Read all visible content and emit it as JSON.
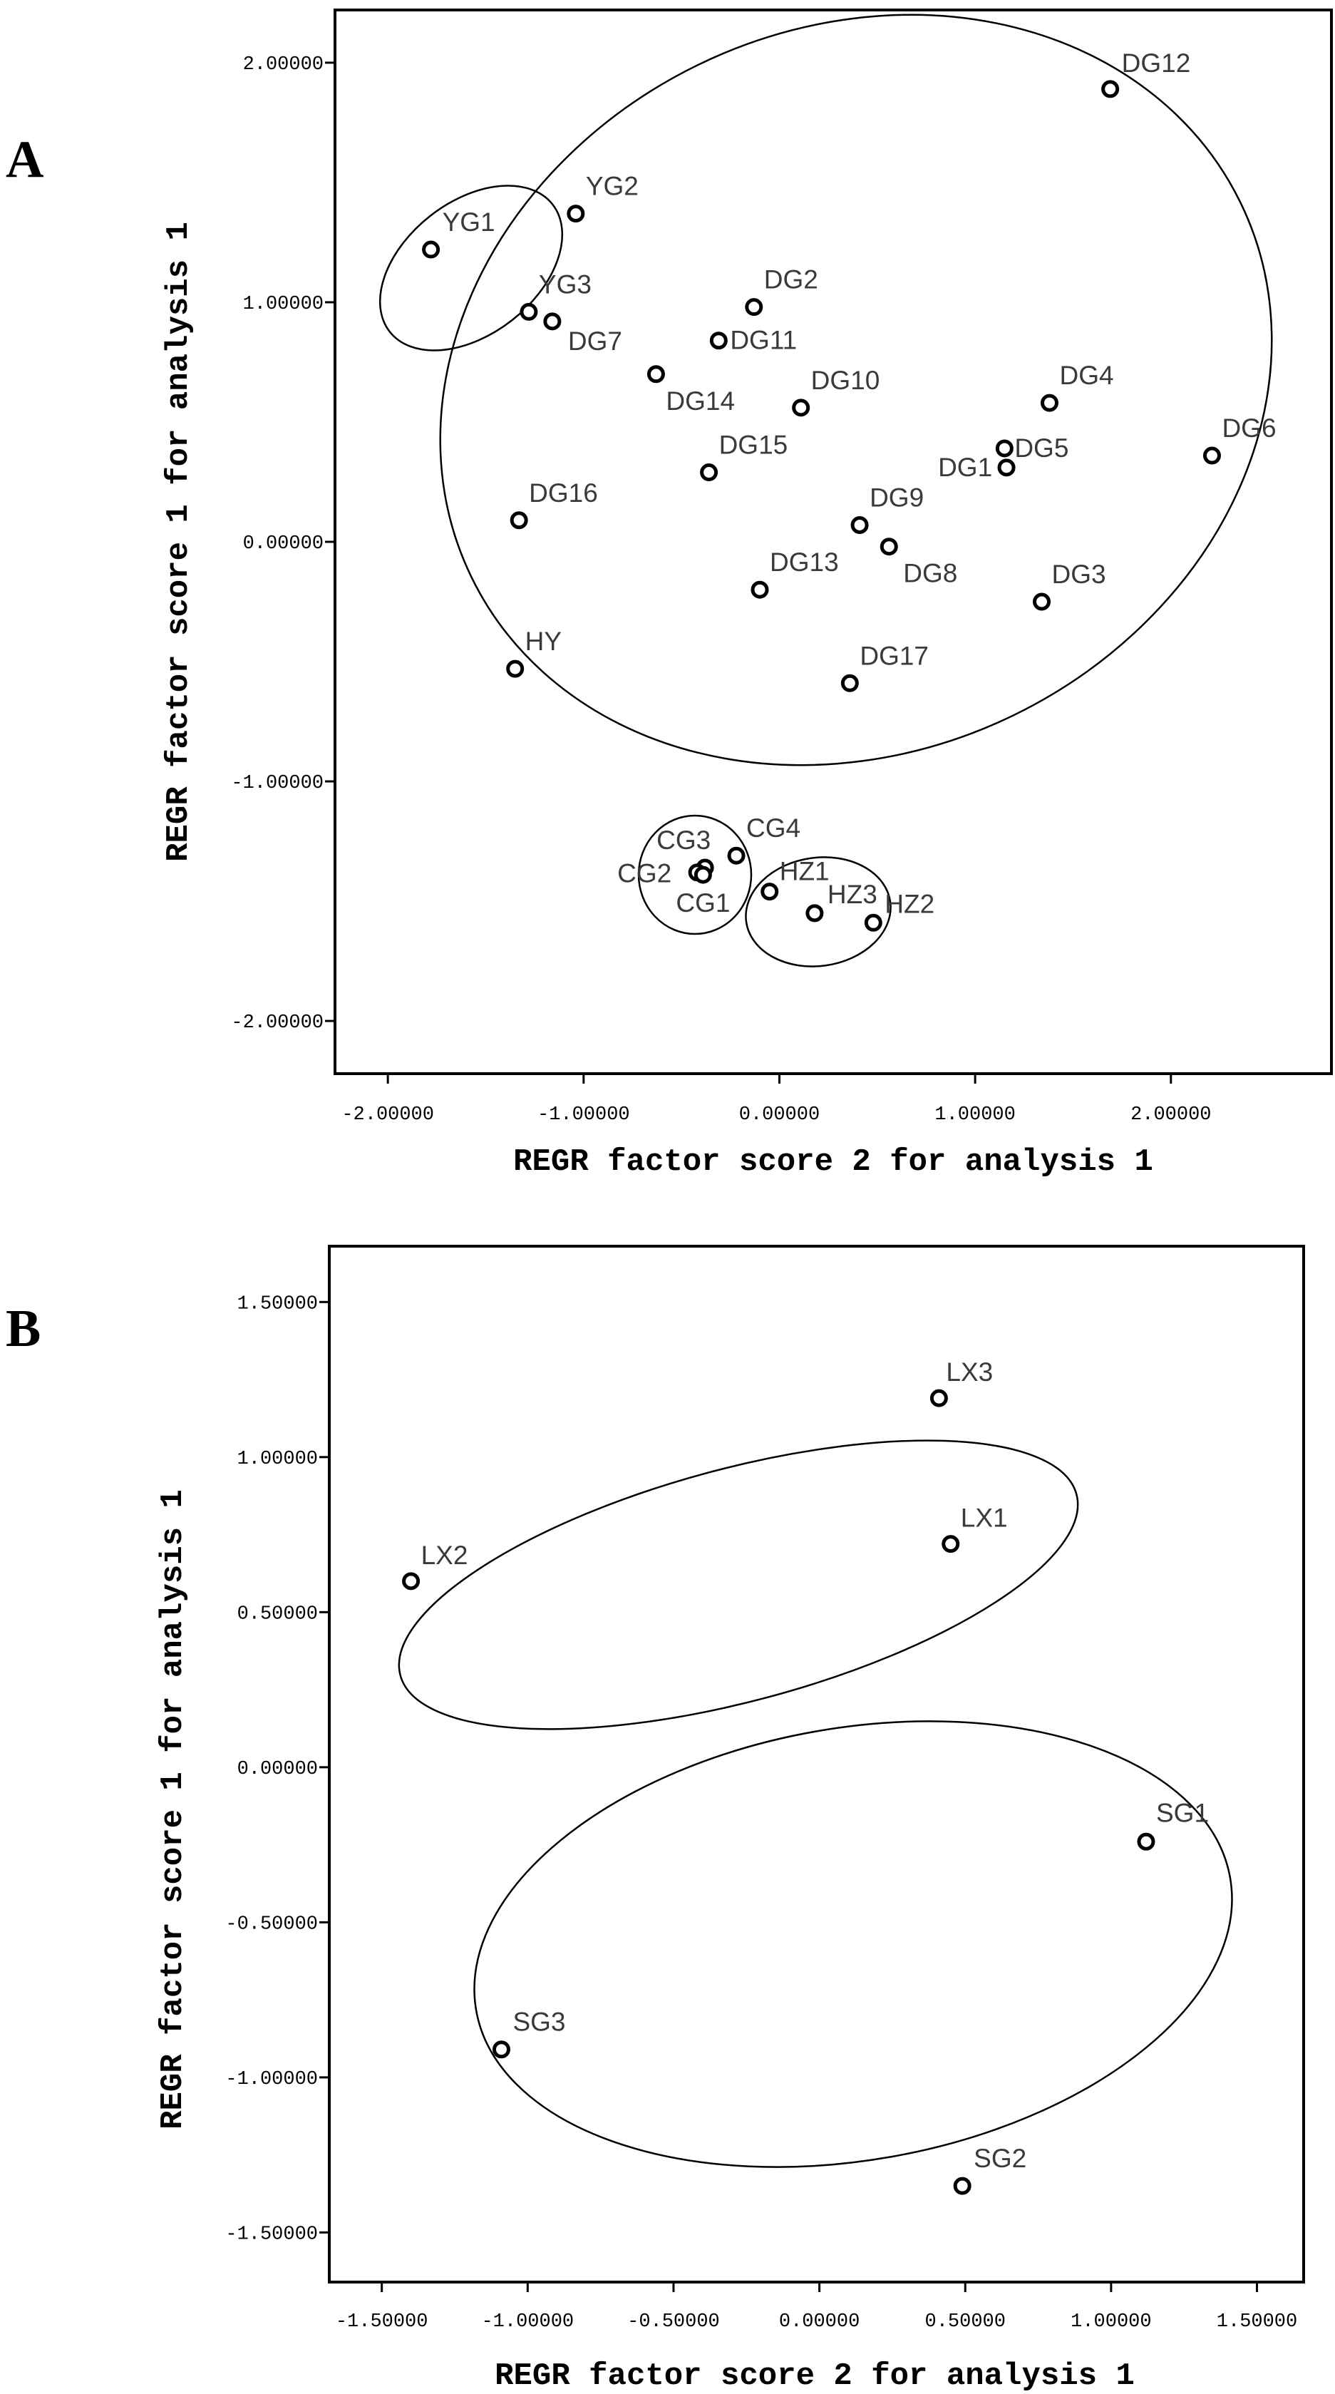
{
  "chart_data": [
    {
      "panel": "A",
      "type": "scatter",
      "xlabel": "REGR factor score   2 for analysis 1",
      "ylabel": "REGR factor score   1 for analysis 1",
      "xlim": [
        -2.27,
        2.82
      ],
      "ylim": [
        -2.22,
        2.22
      ],
      "xticks": [
        "-2.00000",
        "-1.00000",
        "0.00000",
        "1.00000",
        "2.00000"
      ],
      "yticks": [
        "-2.00000",
        "-1.00000",
        "0.00000",
        "1.00000",
        "2.00000"
      ],
      "grid": false,
      "points": [
        {
          "label": "DG12",
          "x": 1.69,
          "y": 1.89
        },
        {
          "label": "YG1",
          "x": -1.78,
          "y": 1.22
        },
        {
          "label": "YG2",
          "x": -1.04,
          "y": 1.37
        },
        {
          "label": "YG3",
          "x": -1.28,
          "y": 0.96
        },
        {
          "label": "DG7",
          "x": -1.16,
          "y": 0.92
        },
        {
          "label": "DG2",
          "x": -0.13,
          "y": 0.98
        },
        {
          "label": "DG11",
          "x": -0.31,
          "y": 0.84
        },
        {
          "label": "DG14",
          "x": -0.63,
          "y": 0.7
        },
        {
          "label": "DG10",
          "x": 0.11,
          "y": 0.56
        },
        {
          "label": "DG4",
          "x": 1.38,
          "y": 0.58
        },
        {
          "label": "DG5",
          "x": 1.15,
          "y": 0.39
        },
        {
          "label": "DG1",
          "x": 1.16,
          "y": 0.31
        },
        {
          "label": "DG6",
          "x": 2.21,
          "y": 0.36
        },
        {
          "label": "DG15",
          "x": -0.36,
          "y": 0.29
        },
        {
          "label": "DG16",
          "x": -1.33,
          "y": 0.09
        },
        {
          "label": "DG9",
          "x": 0.41,
          "y": 0.07
        },
        {
          "label": "DG8",
          "x": 0.56,
          "y": -0.02
        },
        {
          "label": "DG13",
          "x": -0.1,
          "y": -0.2
        },
        {
          "label": "DG3",
          "x": 1.34,
          "y": -0.25
        },
        {
          "label": "HY",
          "x": -1.35,
          "y": -0.53
        },
        {
          "label": "DG17",
          "x": 0.36,
          "y": -0.59
        },
        {
          "label": "CG4",
          "x": -0.22,
          "y": -1.31
        },
        {
          "label": "CG3",
          "x": -0.38,
          "y": -1.36
        },
        {
          "label": "CG2",
          "x": -0.42,
          "y": -1.38
        },
        {
          "label": "CG1",
          "x": -0.39,
          "y": -1.39
        },
        {
          "label": "HZ1",
          "x": -0.05,
          "y": -1.46
        },
        {
          "label": "HZ3",
          "x": 0.18,
          "y": -1.55
        },
        {
          "label": "HZ2",
          "x": 0.48,
          "y": -1.59
        }
      ]
    },
    {
      "panel": "B",
      "type": "scatter",
      "xlabel": "REGR factor score   2 for analysis 1",
      "ylabel": "REGR factor score   1 for analysis 1",
      "xlim": [
        -1.68,
        1.66
      ],
      "ylim": [
        -1.66,
        1.68
      ],
      "xticks": [
        "-1.50000",
        "-1.00000",
        "-0.50000",
        "0.00000",
        "0.50000",
        "1.00000",
        "1.50000"
      ],
      "yticks": [
        "-1.50000",
        "-1.00000",
        "-0.50000",
        "0.00000",
        "0.50000",
        "1.00000",
        "1.50000"
      ],
      "grid": false,
      "points": [
        {
          "label": "LX3",
          "x": 0.41,
          "y": 1.19
        },
        {
          "label": "LX1",
          "x": 0.45,
          "y": 0.72
        },
        {
          "label": "LX2",
          "x": -1.4,
          "y": 0.6
        },
        {
          "label": "SG1",
          "x": 1.12,
          "y": -0.24
        },
        {
          "label": "SG3",
          "x": -1.09,
          "y": -0.91
        },
        {
          "label": "SG2",
          "x": 0.49,
          "y": -1.35
        }
      ]
    }
  ],
  "panels": [
    {
      "letter": "A"
    },
    {
      "letter": "B"
    }
  ]
}
